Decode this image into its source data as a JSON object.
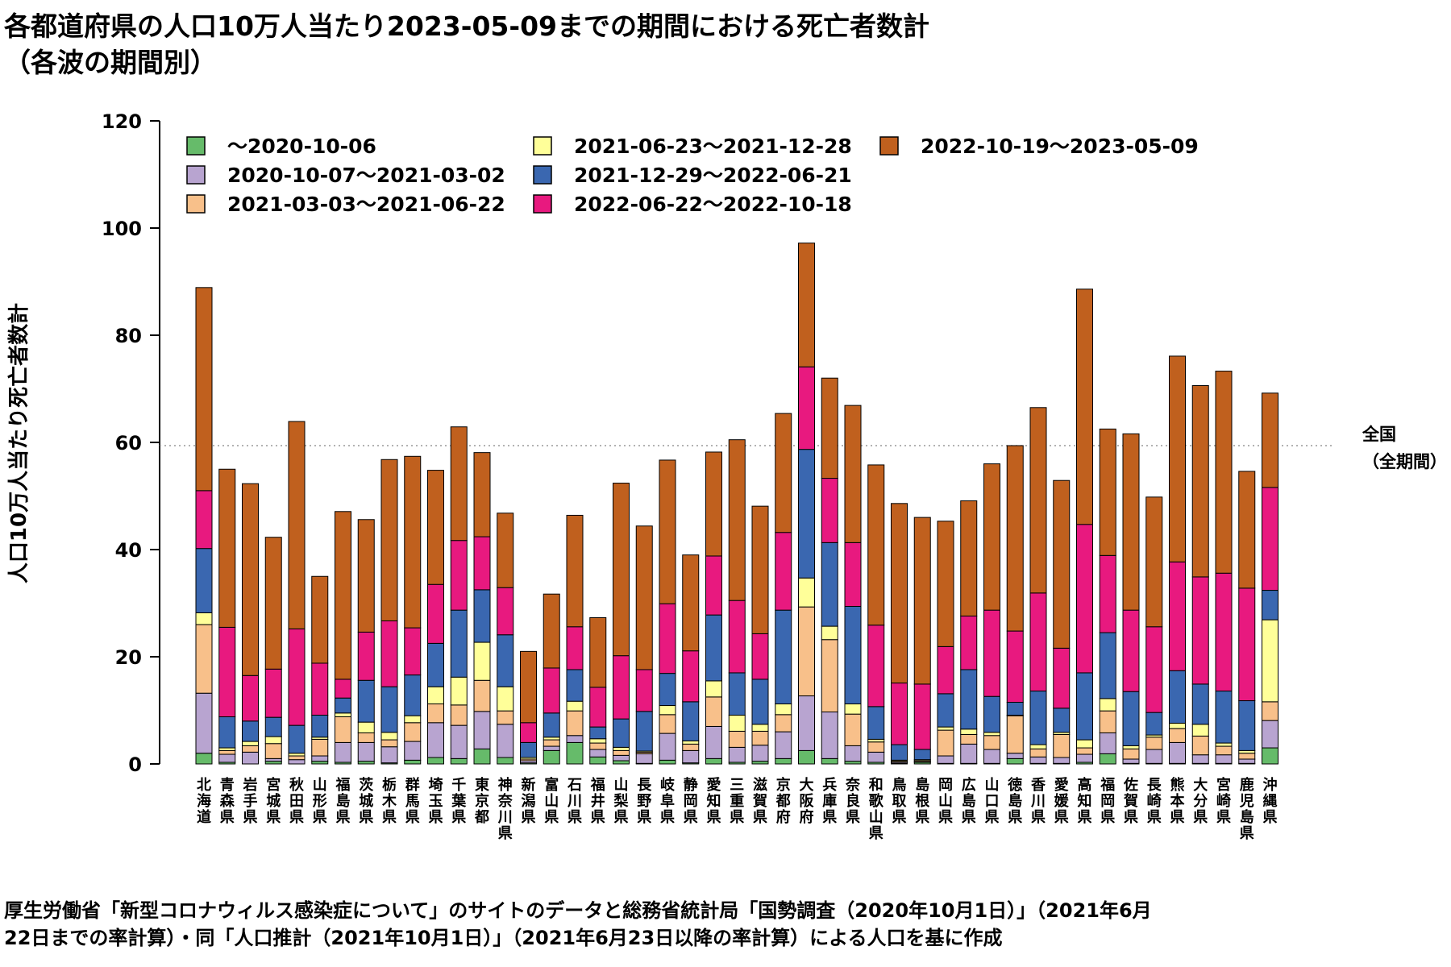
{
  "title": {
    "line1": "各都道府県の人口10万人当たり2023-05-09までの期間における死亡者数計",
    "line2": "（各波の期間別）"
  },
  "source": {
    "line1": "厚生労働省「新型コロナウィルス感染症について」のサイトのデータと総務省統計局「国勢調査（2020年10月1日）」（2021年6月",
    "line2": "22日までの率計算）・同「人口推計（2021年10月1日）」（2021年6月23日以降の率計算）による人口を基に作成"
  },
  "national_line": {
    "label_line1": "全国",
    "label_line2": "（全期間）",
    "value": 59.4
  },
  "chart_data": {
    "type": "bar",
    "stacked": true,
    "title": "各都道府県の人口10万人当たり2023-05-09までの期間における死亡者数計（各波の期間別）",
    "ylabel": "人口10万人当たり死亡者数計",
    "xlabel": "",
    "ylim": [
      0,
      120
    ],
    "yticks": [
      0,
      20,
      40,
      60,
      80,
      100,
      120
    ],
    "grid": false,
    "legend_position": "top-left",
    "categories": [
      "北海道",
      "青森県",
      "岩手県",
      "宮城県",
      "秋田県",
      "山形県",
      "福島県",
      "茨城県",
      "栃木県",
      "群馬県",
      "埼玉県",
      "千葉県",
      "東京都",
      "神奈川県",
      "新潟県",
      "富山県",
      "石川県",
      "福井県",
      "山梨県",
      "長野県",
      "岐阜県",
      "静岡県",
      "愛知県",
      "三重県",
      "滋賀県",
      "京都府",
      "大阪府",
      "兵庫県",
      "奈良県",
      "和歌山県",
      "鳥取県",
      "島根県",
      "岡山県",
      "広島県",
      "山口県",
      "徳島県",
      "香川県",
      "愛媛県",
      "高知県",
      "福岡県",
      "佐賀県",
      "長崎県",
      "熊本県",
      "大分県",
      "宮崎県",
      "鹿児島県",
      "沖縄県"
    ],
    "series": [
      {
        "name": "～2020-10-06",
        "color": "#66bb6a",
        "values": [
          2.0,
          0.3,
          0.0,
          0.5,
          0.0,
          0.5,
          0.3,
          0.5,
          0.2,
          0.7,
          1.2,
          1.0,
          2.8,
          1.2,
          0.2,
          2.5,
          4.0,
          1.3,
          0.6,
          0.1,
          0.7,
          0.2,
          1.0,
          0.3,
          0.5,
          1.0,
          2.5,
          1.0,
          0.5,
          0.3,
          0.1,
          0.3,
          0.1,
          0.1,
          0.1,
          1.0,
          0.1,
          0.1,
          0.3,
          1.9,
          0.1,
          0.1,
          0.1,
          0.1,
          0.1,
          0.1,
          3.0
        ]
      },
      {
        "name": "2020-10-07～2021-03-02",
        "color": "#b8a4d0",
        "values": [
          11.2,
          1.5,
          2.2,
          0.5,
          0.8,
          1.0,
          3.7,
          3.5,
          3.0,
          3.5,
          6.5,
          6.2,
          7.0,
          6.2,
          0.4,
          0.8,
          1.3,
          1.4,
          1.0,
          1.8,
          5.0,
          2.3,
          6.0,
          2.8,
          3.0,
          5.0,
          10.2,
          8.7,
          2.9,
          1.9,
          0.2,
          0.1,
          1.4,
          3.6,
          2.6,
          1.0,
          1.2,
          1.1,
          1.5,
          3.9,
          0.8,
          2.6,
          3.9,
          1.6,
          1.6,
          0.8,
          5.1
        ]
      },
      {
        "name": "2021-03-03～2021-06-22",
        "color": "#f8c08a",
        "values": [
          12.8,
          0.7,
          1.2,
          2.8,
          0.7,
          3.1,
          4.8,
          1.8,
          1.3,
          3.5,
          3.5,
          3.8,
          5.8,
          2.5,
          0.3,
          1.2,
          4.6,
          1.2,
          0.9,
          0.3,
          3.5,
          1.2,
          5.5,
          3.0,
          2.6,
          3.2,
          16.6,
          13.5,
          5.9,
          1.9,
          0.2,
          0.2,
          4.8,
          1.8,
          2.6,
          7.0,
          1.5,
          4.3,
          1.2,
          4.1,
          1.9,
          2.3,
          2.6,
          3.5,
          1.6,
          1.1,
          3.5
        ]
      },
      {
        "name": "2021-06-23～2021-12-28",
        "color": "#ffff99",
        "values": [
          2.2,
          0.5,
          0.8,
          1.3,
          0.5,
          0.4,
          0.7,
          2.0,
          1.4,
          1.3,
          3.2,
          5.2,
          7.1,
          4.5,
          0.3,
          0.5,
          1.8,
          0.8,
          0.6,
          0.2,
          1.7,
          0.6,
          3.0,
          3.0,
          1.3,
          2.0,
          5.4,
          2.5,
          1.9,
          0.5,
          0.2,
          0.2,
          0.6,
          1.0,
          0.6,
          0.1,
          0.8,
          0.4,
          1.5,
          2.3,
          0.6,
          0.4,
          1.0,
          2.2,
          0.6,
          0.5,
          15.3
        ]
      },
      {
        "name": "2021-12-29～2022-06-21",
        "color": "#3a67b0",
        "values": [
          12.0,
          5.8,
          3.8,
          3.6,
          5.2,
          4.1,
          2.8,
          7.8,
          8.5,
          7.6,
          8.1,
          12.5,
          9.8,
          9.7,
          2.8,
          4.5,
          5.9,
          2.2,
          5.3,
          7.4,
          6.0,
          7.3,
          12.3,
          7.9,
          8.4,
          17.5,
          24.0,
          15.6,
          18.2,
          6.1,
          2.9,
          1.9,
          6.2,
          11.1,
          6.7,
          2.4,
          10.0,
          4.5,
          12.5,
          12.3,
          10.1,
          4.2,
          9.8,
          7.5,
          9.7,
          9.3,
          5.5
        ]
      },
      {
        "name": "2022-06-22～2022-10-18",
        "color": "#e8197f",
        "values": [
          10.8,
          16.7,
          8.5,
          9.0,
          18.0,
          9.7,
          3.5,
          9.0,
          12.3,
          8.8,
          11.0,
          13.0,
          9.9,
          8.8,
          3.7,
          8.4,
          8.0,
          7.4,
          11.8,
          7.8,
          13.0,
          9.5,
          11.0,
          13.5,
          8.5,
          14.5,
          15.4,
          12.0,
          11.9,
          15.2,
          11.5,
          12.2,
          8.8,
          10.0,
          16.1,
          13.3,
          18.3,
          11.2,
          27.7,
          14.4,
          15.2,
          16.0,
          20.3,
          20.0,
          22.0,
          21.0,
          19.2
        ]
      },
      {
        "name": "2022-10-19～2023-05-09",
        "color": "#c0601e",
        "values": [
          37.9,
          29.5,
          35.8,
          24.6,
          38.7,
          16.2,
          31.3,
          21.0,
          30.1,
          32.0,
          21.3,
          21.2,
          15.7,
          13.9,
          13.3,
          13.8,
          20.8,
          13.0,
          32.2,
          26.8,
          26.8,
          17.9,
          19.4,
          30.0,
          23.8,
          22.2,
          23.1,
          18.7,
          25.6,
          29.9,
          33.5,
          31.1,
          23.4,
          21.5,
          27.3,
          34.6,
          34.6,
          31.3,
          43.9,
          23.6,
          32.9,
          24.2,
          38.4,
          35.7,
          37.7,
          21.8,
          17.6
        ]
      }
    ]
  }
}
